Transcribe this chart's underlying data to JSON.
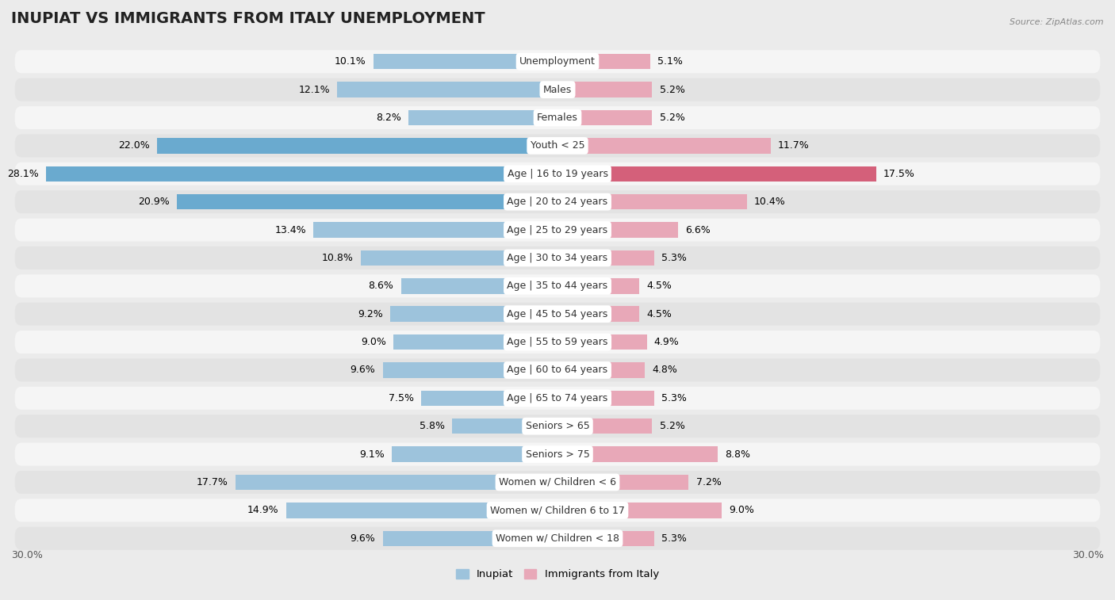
{
  "title": "Inupiat vs Immigrants from Italy Unemployment",
  "source": "Source: ZipAtlas.com",
  "categories": [
    "Unemployment",
    "Males",
    "Females",
    "Youth < 25",
    "Age | 16 to 19 years",
    "Age | 20 to 24 years",
    "Age | 25 to 29 years",
    "Age | 30 to 34 years",
    "Age | 35 to 44 years",
    "Age | 45 to 54 years",
    "Age | 55 to 59 years",
    "Age | 60 to 64 years",
    "Age | 65 to 74 years",
    "Seniors > 65",
    "Seniors > 75",
    "Women w/ Children < 6",
    "Women w/ Children 6 to 17",
    "Women w/ Children < 18"
  ],
  "inupiat": [
    10.1,
    12.1,
    8.2,
    22.0,
    28.1,
    20.9,
    13.4,
    10.8,
    8.6,
    9.2,
    9.0,
    9.6,
    7.5,
    5.8,
    9.1,
    17.7,
    14.9,
    9.6
  ],
  "italy": [
    5.1,
    5.2,
    5.2,
    11.7,
    17.5,
    10.4,
    6.6,
    5.3,
    4.5,
    4.5,
    4.9,
    4.8,
    5.3,
    5.2,
    8.8,
    7.2,
    9.0,
    5.3
  ],
  "inupiat_color": "#9dc3dc",
  "italy_color": "#e8a8b8",
  "inupiat_dark_color": "#6aaacf",
  "italy_dark_color": "#d4607a",
  "max_val": 30.0,
  "bg_color": "#ebebeb",
  "row_light_color": "#f5f5f5",
  "row_dark_color": "#e3e3e3",
  "legend_inupiat": "Inupiat",
  "legend_italy": "Immigrants from Italy",
  "title_fontsize": 14,
  "label_fontsize": 9,
  "cat_fontsize": 9
}
